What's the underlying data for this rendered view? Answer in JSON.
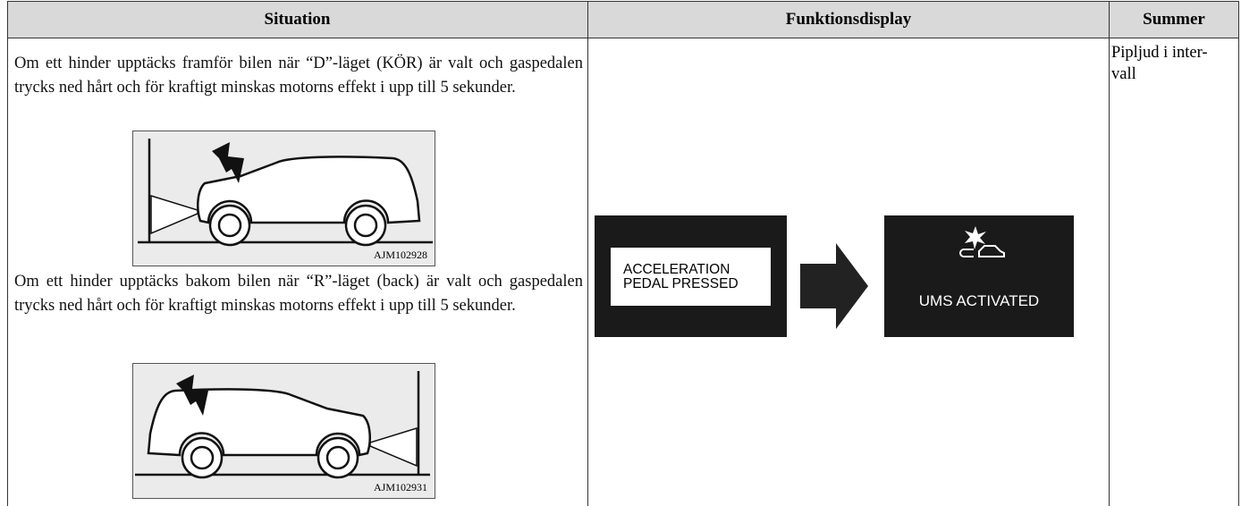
{
  "table": {
    "header": [
      "Situation",
      "Funktionsdisplay",
      "Summer"
    ],
    "situations": [
      {
        "text": "Om ett hinder upptäcks framför bilen när “D”-läget (KÖR) är valt och gaspedalen trycks ned hårt och för kraftigt minskas motorns effekt i upp till 5 sekunder.",
        "figure_id": "AJM102928"
      },
      {
        "text": "Om ett hinder upptäcks bakom bilen när “R”-läget (back) är valt och gaspedalen trycks ned hårt och för kraftigt minskas motorns effekt i upp till 5 sekunder.",
        "figure_id": "AJM102931"
      }
    ],
    "display": {
      "before": [
        "ACCELERATION",
        "PEDAL PRESSED"
      ],
      "after": "UMS ACTIVATED"
    },
    "summer": [
      "Pipljud i inter-",
      "vall"
    ]
  }
}
